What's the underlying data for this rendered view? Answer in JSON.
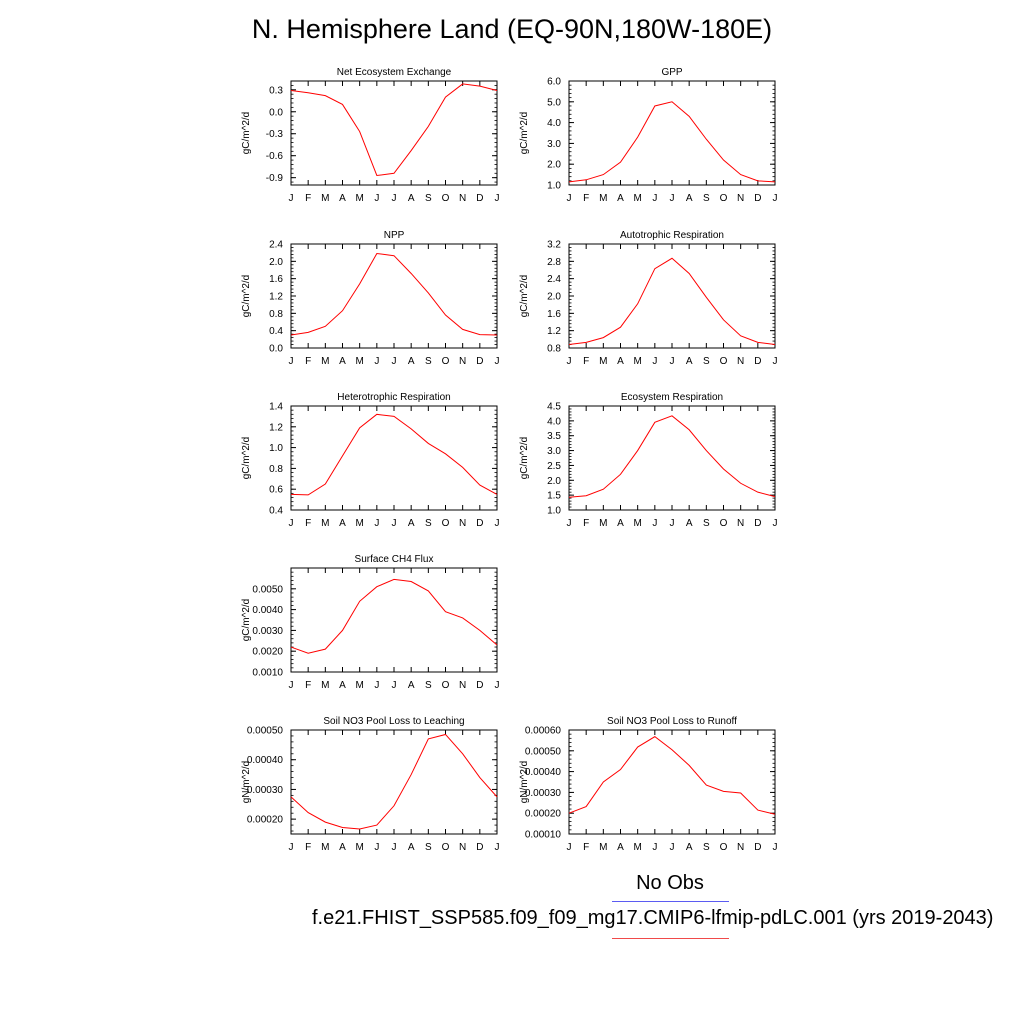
{
  "page": {
    "title": "N. Hemisphere Land (EQ-90N,180W-180E)"
  },
  "legend": {
    "obs_label": "No Obs",
    "obs_color": "#5b5bf2",
    "case_label": "f.e21.FHIST_SSP585.f09_f09_mg17.CMIP6-lfmip-pdLC.001 (yrs 2019-2043)",
    "case_color": "#f04a4a"
  },
  "chart_data": [
    {
      "type": "line",
      "title": "Net Ecosystem Exchange",
      "ylabel": "gC/m^2/d",
      "xlabel": "",
      "categories": [
        "J",
        "F",
        "M",
        "A",
        "M",
        "J",
        "J",
        "A",
        "S",
        "O",
        "N",
        "D",
        "J"
      ],
      "ylim": [
        -1.0,
        0.42
      ],
      "yticks": [
        0.3,
        0.0,
        -0.3,
        -0.6,
        -0.9
      ],
      "ytick_labels": [
        "0.3",
        "0.0",
        "-0.3",
        "-0.6",
        "-0.9"
      ],
      "series": [
        {
          "values": [
            0.29,
            0.26,
            0.22,
            0.1,
            -0.27,
            -0.87,
            -0.84,
            -0.53,
            -0.2,
            0.2,
            0.38,
            0.35,
            0.29
          ],
          "color": "#ff0000"
        }
      ],
      "grid": false
    },
    {
      "type": "line",
      "title": "GPP",
      "ylabel": "gC/m^2/d",
      "xlabel": "",
      "categories": [
        "J",
        "F",
        "M",
        "A",
        "M",
        "J",
        "J",
        "A",
        "S",
        "O",
        "N",
        "D",
        "J"
      ],
      "ylim": [
        1.0,
        6.0
      ],
      "yticks": [
        1.0,
        2.0,
        3.0,
        4.0,
        5.0,
        6.0
      ],
      "ytick_labels": [
        "1.0",
        "2.0",
        "3.0",
        "4.0",
        "5.0",
        "6.0"
      ],
      "series": [
        {
          "values": [
            1.15,
            1.25,
            1.5,
            2.1,
            3.3,
            4.8,
            5.0,
            4.3,
            3.2,
            2.2,
            1.5,
            1.2,
            1.15
          ],
          "color": "#ff0000"
        }
      ],
      "grid": false
    },
    {
      "type": "line",
      "title": "NPP",
      "ylabel": "gC/m^2/d",
      "xlabel": "",
      "categories": [
        "J",
        "F",
        "M",
        "A",
        "M",
        "J",
        "J",
        "A",
        "S",
        "O",
        "N",
        "D",
        "J"
      ],
      "ylim": [
        0.0,
        2.4
      ],
      "yticks": [
        0.0,
        0.4,
        0.8,
        1.2,
        1.6,
        2.0,
        2.4
      ],
      "ytick_labels": [
        "0.0",
        "0.4",
        "0.8",
        "1.2",
        "1.6",
        "2.0",
        "2.4"
      ],
      "series": [
        {
          "values": [
            0.3,
            0.36,
            0.5,
            0.86,
            1.48,
            2.18,
            2.13,
            1.72,
            1.27,
            0.76,
            0.43,
            0.31,
            0.3
          ],
          "color": "#ff0000"
        }
      ],
      "grid": false
    },
    {
      "type": "line",
      "title": "Autotrophic Respiration",
      "ylabel": "gC/m^2/d",
      "xlabel": "",
      "categories": [
        "J",
        "F",
        "M",
        "A",
        "M",
        "J",
        "J",
        "A",
        "S",
        "O",
        "N",
        "D",
        "J"
      ],
      "ylim": [
        0.8,
        3.2
      ],
      "yticks": [
        0.8,
        1.2,
        1.6,
        2.0,
        2.4,
        2.8,
        3.2
      ],
      "ytick_labels": [
        "0.8",
        "1.2",
        "1.6",
        "2.0",
        "2.4",
        "2.8",
        "3.2"
      ],
      "series": [
        {
          "values": [
            0.88,
            0.93,
            1.04,
            1.28,
            1.82,
            2.63,
            2.87,
            2.52,
            1.97,
            1.45,
            1.08,
            0.93,
            0.88
          ],
          "color": "#ff0000"
        }
      ],
      "grid": false
    },
    {
      "type": "line",
      "title": "Heterotrophic Respiration",
      "ylabel": "gC/m^2/d",
      "xlabel": "",
      "categories": [
        "J",
        "F",
        "M",
        "A",
        "M",
        "J",
        "J",
        "A",
        "S",
        "O",
        "N",
        "D",
        "J"
      ],
      "ylim": [
        0.4,
        1.4
      ],
      "yticks": [
        0.4,
        0.6,
        0.8,
        1.0,
        1.2,
        1.4
      ],
      "ytick_labels": [
        "0.4",
        "0.6",
        "0.8",
        "1.0",
        "1.2",
        "1.4"
      ],
      "series": [
        {
          "values": [
            0.55,
            0.545,
            0.65,
            0.92,
            1.19,
            1.32,
            1.3,
            1.18,
            1.04,
            0.94,
            0.81,
            0.64,
            0.55
          ],
          "color": "#ff0000"
        }
      ],
      "grid": false
    },
    {
      "type": "line",
      "title": "Ecosystem Respiration",
      "ylabel": "gC/m^2/d",
      "xlabel": "",
      "categories": [
        "J",
        "F",
        "M",
        "A",
        "M",
        "J",
        "J",
        "A",
        "S",
        "O",
        "N",
        "D",
        "J"
      ],
      "ylim": [
        1.0,
        4.5
      ],
      "yticks": [
        1.0,
        1.5,
        2.0,
        2.5,
        3.0,
        3.5,
        4.0,
        4.5
      ],
      "ytick_labels": [
        "1.0",
        "1.5",
        "2.0",
        "2.5",
        "3.0",
        "3.5",
        "4.0",
        "4.5"
      ],
      "series": [
        {
          "values": [
            1.43,
            1.48,
            1.7,
            2.2,
            3.0,
            3.95,
            4.17,
            3.7,
            3.0,
            2.38,
            1.9,
            1.6,
            1.45
          ],
          "color": "#ff0000"
        }
      ],
      "grid": false
    },
    {
      "type": "line",
      "title": "Surface CH4 Flux",
      "ylabel": "gC/m^2/d",
      "xlabel": "",
      "categories": [
        "J",
        "F",
        "M",
        "A",
        "M",
        "J",
        "J",
        "A",
        "S",
        "O",
        "N",
        "D",
        "J"
      ],
      "ylim": [
        0.001,
        0.006
      ],
      "yticks": [
        0.001,
        0.002,
        0.003,
        0.004,
        0.005
      ],
      "ytick_labels": [
        "0.0010",
        "0.0020",
        "0.0030",
        "0.0040",
        "0.0050"
      ],
      "series": [
        {
          "values": [
            0.0022,
            0.0019,
            0.0021,
            0.003,
            0.0044,
            0.0051,
            0.00545,
            0.00535,
            0.0049,
            0.0039,
            0.0036,
            0.003,
            0.0023
          ],
          "color": "#ff0000"
        }
      ],
      "grid": false
    },
    {
      "type": "line",
      "title": "Soil NO3 Pool Loss to Leaching",
      "ylabel": "gN/m^2/d",
      "xlabel": "",
      "categories": [
        "J",
        "F",
        "M",
        "A",
        "M",
        "J",
        "J",
        "A",
        "S",
        "O",
        "N",
        "D",
        "J"
      ],
      "ylim": [
        0.00015,
        0.0005
      ],
      "yticks": [
        0.0002,
        0.0003,
        0.0004,
        0.0005
      ],
      "ytick_labels": [
        "0.00020",
        "0.00030",
        "0.00040",
        "0.00050"
      ],
      "series": [
        {
          "values": [
            0.000275,
            0.000222,
            0.00019,
            0.000172,
            0.000167,
            0.00018,
            0.000245,
            0.00035,
            0.00047,
            0.000485,
            0.00042,
            0.00034,
            0.000275
          ],
          "color": "#ff0000"
        }
      ],
      "grid": false
    },
    {
      "type": "line",
      "title": "Soil NO3 Pool Loss to Runoff",
      "ylabel": "gN/m^2/d",
      "xlabel": "",
      "categories": [
        "J",
        "F",
        "M",
        "A",
        "M",
        "J",
        "J",
        "A",
        "S",
        "O",
        "N",
        "D",
        "J"
      ],
      "ylim": [
        0.0001,
        0.0006
      ],
      "yticks": [
        0.0001,
        0.0002,
        0.0003,
        0.0004,
        0.0005,
        0.0006
      ],
      "ytick_labels": [
        "0.00010",
        "0.00020",
        "0.00030",
        "0.00040",
        "0.00050",
        "0.00060"
      ],
      "series": [
        {
          "values": [
            0.0002,
            0.000232,
            0.00035,
            0.00041,
            0.000518,
            0.000568,
            0.000505,
            0.00043,
            0.000335,
            0.000305,
            0.000297,
            0.000215,
            0.000195
          ],
          "color": "#ff0000"
        }
      ],
      "grid": false
    }
  ]
}
